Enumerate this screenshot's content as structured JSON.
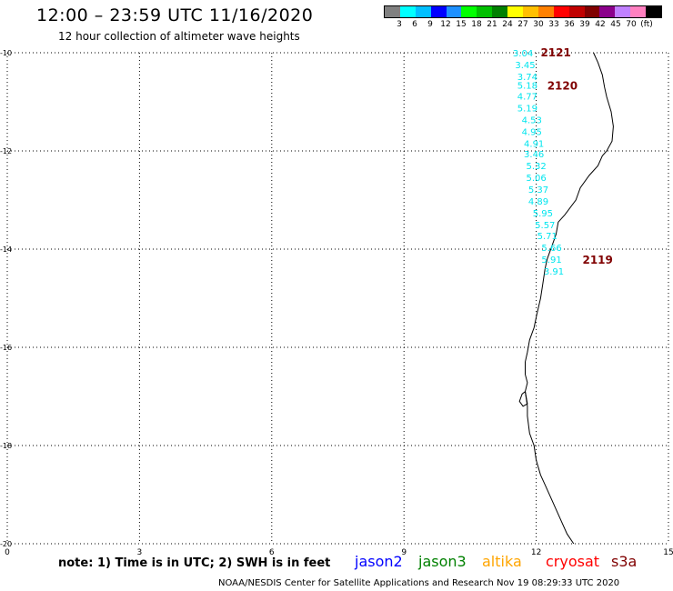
{
  "header": {
    "title": "12:00 – 23:59 UTC 11/16/2020",
    "subtitle": "12 hour collection of altimeter wave heights"
  },
  "color_scale": {
    "colors": [
      "#808080",
      "#00ffff",
      "#00bfff",
      "#0000ff",
      "#1e90ff",
      "#00ff00",
      "#00c000",
      "#008000",
      "#ffff00",
      "#ffc000",
      "#ff8000",
      "#ff0000",
      "#c00000",
      "#800000",
      "#8b008b",
      "#c080ff",
      "#ff80c0",
      "#000000"
    ],
    "labels": [
      "3",
      "6",
      "9",
      "12",
      "15",
      "18",
      "21",
      "24",
      "27",
      "30",
      "33",
      "36",
      "39",
      "42",
      "45",
      "70",
      "(ft)"
    ]
  },
  "chart_data": {
    "type": "map",
    "x_ticks": [
      "0",
      "3",
      "6",
      "9",
      "12",
      "15"
    ],
    "y_ticks": [
      "-10",
      "-12",
      "-14",
      "-16",
      "-18",
      "-20"
    ],
    "grid": true,
    "swh_values": [
      {
        "value": "3.04",
        "lon": 11.7,
        "lat": -10.0
      },
      {
        "value": "3.45",
        "lon": 11.75,
        "lat": -10.24
      },
      {
        "value": "3.74",
        "lon": 11.8,
        "lat": -10.48
      },
      {
        "value": "5.18",
        "lon": 11.8,
        "lat": -10.66
      },
      {
        "value": "4.77",
        "lon": 11.8,
        "lat": -10.88
      },
      {
        "value": "5.19",
        "lon": 11.8,
        "lat": -11.12
      },
      {
        "value": "4.53",
        "lon": 11.9,
        "lat": -11.36
      },
      {
        "value": "4.95",
        "lon": 11.9,
        "lat": -11.6
      },
      {
        "value": "4.91",
        "lon": 11.95,
        "lat": -11.84
      },
      {
        "value": "3.46",
        "lon": 11.95,
        "lat": -12.06
      },
      {
        "value": "5.32",
        "lon": 12.0,
        "lat": -12.3
      },
      {
        "value": "5.06",
        "lon": 12.0,
        "lat": -12.54
      },
      {
        "value": "5.37",
        "lon": 12.05,
        "lat": -12.78
      },
      {
        "value": "4.89",
        "lon": 12.05,
        "lat": -13.02
      },
      {
        "value": "5.95",
        "lon": 12.15,
        "lat": -13.26
      },
      {
        "value": "5.57",
        "lon": 12.2,
        "lat": -13.5
      },
      {
        "value": "5.71",
        "lon": 12.25,
        "lat": -13.72
      },
      {
        "value": "5.66",
        "lon": 12.35,
        "lat": -13.96
      },
      {
        "value": "5.91",
        "lon": 12.35,
        "lat": -14.2
      },
      {
        "value": "3.91",
        "lon": 12.4,
        "lat": -14.44
      }
    ],
    "pass_labels": [
      {
        "text": "2121",
        "lon": 12.1,
        "lat": -10.0
      },
      {
        "text": "2120",
        "lon": 12.25,
        "lat": -10.68
      },
      {
        "text": "2119",
        "lon": 13.05,
        "lat": -14.22
      }
    ],
    "coastline": [
      [
        13.3,
        -10.0
      ],
      [
        13.4,
        -10.2
      ],
      [
        13.5,
        -10.45
      ],
      [
        13.55,
        -10.7
      ],
      [
        13.6,
        -10.9
      ],
      [
        13.7,
        -11.2
      ],
      [
        13.75,
        -11.5
      ],
      [
        13.72,
        -11.8
      ],
      [
        13.6,
        -12.0
      ],
      [
        13.5,
        -12.1
      ],
      [
        13.4,
        -12.3
      ],
      [
        13.2,
        -12.5
      ],
      [
        13.0,
        -12.75
      ],
      [
        12.9,
        -13.0
      ],
      [
        12.65,
        -13.3
      ],
      [
        12.5,
        -13.45
      ],
      [
        12.45,
        -13.7
      ],
      [
        12.35,
        -13.95
      ],
      [
        12.25,
        -14.2
      ],
      [
        12.2,
        -14.4
      ],
      [
        12.15,
        -14.7
      ],
      [
        12.1,
        -15.0
      ],
      [
        12.02,
        -15.3
      ],
      [
        11.95,
        -15.6
      ],
      [
        11.85,
        -15.85
      ],
      [
        11.8,
        -16.1
      ],
      [
        11.75,
        -16.3
      ],
      [
        11.75,
        -16.55
      ],
      [
        11.8,
        -16.72
      ],
      [
        11.75,
        -16.9
      ],
      [
        11.8,
        -17.2
      ],
      [
        11.8,
        -17.4
      ],
      [
        11.85,
        -17.75
      ],
      [
        11.95,
        -18.0
      ],
      [
        12.0,
        -18.3
      ],
      [
        12.1,
        -18.6
      ],
      [
        12.2,
        -18.8
      ],
      [
        12.35,
        -19.1
      ],
      [
        12.5,
        -19.4
      ],
      [
        12.7,
        -19.8
      ],
      [
        12.85,
        -20.0
      ]
    ],
    "island": [
      [
        11.75,
        -16.9
      ],
      [
        11.68,
        -16.95
      ],
      [
        11.62,
        -17.1
      ],
      [
        11.7,
        -17.2
      ],
      [
        11.8,
        -17.15
      ]
    ]
  },
  "footer": {
    "note": "note: 1) Time is in UTC; 2) SWH is in feet",
    "satellites": [
      {
        "name": "jason2",
        "color": "#0000ff"
      },
      {
        "name": "jason3",
        "color": "#008000"
      },
      {
        "name": "altika",
        "color": "#ffa500"
      },
      {
        "name": "cryosat",
        "color": "#ff0000"
      },
      {
        "name": "s3a",
        "color": "#800000"
      }
    ],
    "credit": "NOAA/NESDIS Center for Satellite Applications and Research    Nov 19 08:29:33 UTC 2020"
  }
}
